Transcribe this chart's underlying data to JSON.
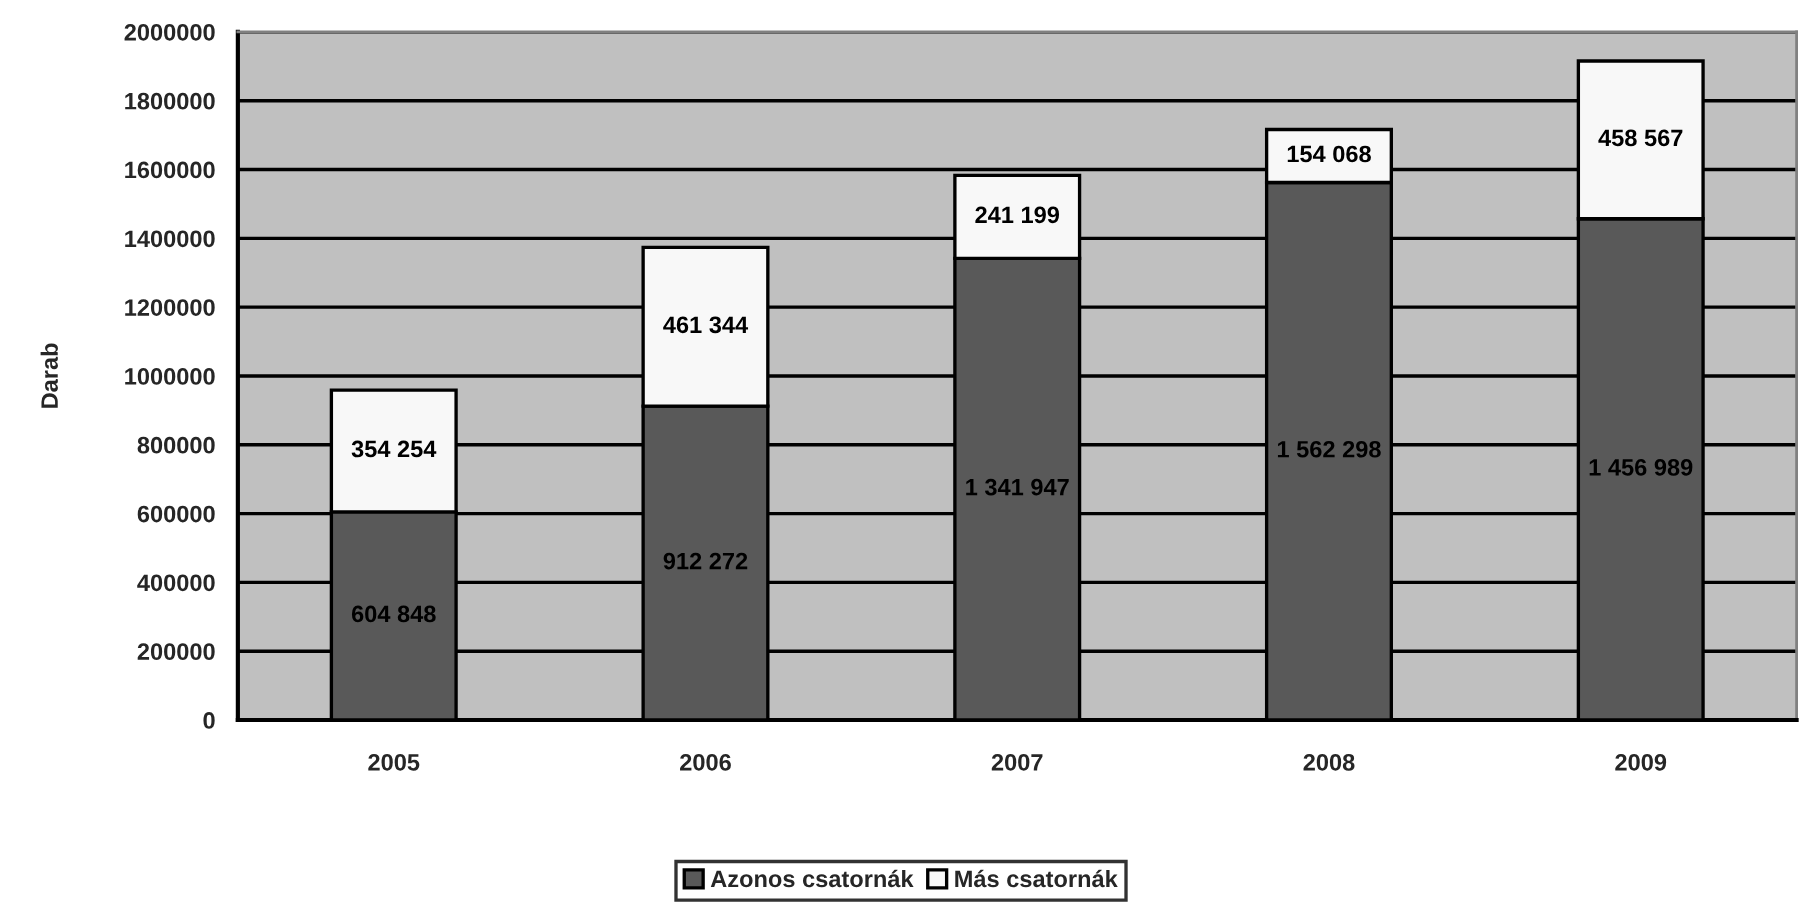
{
  "chart_data": {
    "type": "bar",
    "stacked": true,
    "ylabel": "Darab",
    "categories": [
      "2005",
      "2006",
      "2007",
      "2008",
      "2009"
    ],
    "series": [
      {
        "name": "Azonos csatornák",
        "color": "#595959",
        "values": [
          604848,
          912272,
          1341947,
          1562298,
          1456989
        ],
        "value_labels": [
          "604 848",
          "912 272",
          "1 341 947",
          "1 562 298",
          "1 456 989"
        ]
      },
      {
        "name": "Más csatornák",
        "color": "#f8f8f8",
        "values": [
          354254,
          461344,
          241199,
          154068,
          458567
        ],
        "value_labels": [
          "354 254",
          "461 344",
          "241 199",
          "154 068",
          "458 567"
        ]
      }
    ],
    "ylim": [
      0,
      2000000
    ],
    "yticks": [
      0,
      200000,
      400000,
      600000,
      800000,
      1000000,
      1200000,
      1400000,
      1600000,
      1800000,
      2000000
    ],
    "grid": "y",
    "legend": "bottom"
  }
}
